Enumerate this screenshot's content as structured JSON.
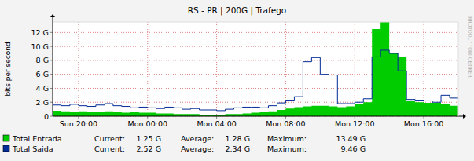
{
  "chart_data": {
    "type": "line",
    "title": "RS - PR | 200G | Trafego",
    "y_label": "bits per second",
    "watermark": "RRDTOOL / TOBI OETIKER",
    "x": [
      18.5,
      19,
      19.5,
      20,
      20.5,
      21,
      21.5,
      22,
      22.5,
      23,
      23.5,
      24,
      24.5,
      25,
      25.5,
      26,
      26.5,
      27,
      27.5,
      28,
      28.5,
      29,
      29.5,
      30,
      30.5,
      31,
      31.5,
      32,
      32.5,
      33,
      33.5,
      34,
      34.5,
      35,
      35.5,
      36,
      36.5,
      37,
      37.5,
      38,
      38.5,
      39,
      39.5,
      40,
      40.5,
      41,
      41.5,
      42
    ],
    "xlim": [
      18.5,
      42
    ],
    "xticks": [
      {
        "value": 20,
        "label": "Sun 20:00"
      },
      {
        "value": 24,
        "label": "Mon 00:00"
      },
      {
        "value": 28,
        "label": "Mon 04:00"
      },
      {
        "value": 32,
        "label": "Mon 08:00"
      },
      {
        "value": 36,
        "label": "Mon 12:00"
      },
      {
        "value": 40,
        "label": "Mon 16:00"
      }
    ],
    "ylim": [
      0,
      13.5
    ],
    "yticks": [
      0,
      {
        "value": 2,
        "label": "2 G"
      },
      {
        "value": 4,
        "label": "4 G"
      },
      {
        "value": 6,
        "label": "6 G"
      },
      {
        "value": 8,
        "label": "8 G"
      },
      {
        "value": 10,
        "label": "10 G"
      },
      {
        "value": 12,
        "label": "12 G"
      }
    ],
    "grid": true,
    "stat_labels": [
      "Current:",
      "Average:",
      "Maximum:"
    ],
    "series": [
      {
        "name": "Total Entrada",
        "color": "#00cc00",
        "type": "area",
        "current": "1.25 G",
        "average": "1.28 G",
        "maximum": "13.49 G",
        "values": [
          0.8,
          0.7,
          0.6,
          0.7,
          0.6,
          0.6,
          0.7,
          0.6,
          0.5,
          0.6,
          0.5,
          0.5,
          0.4,
          0.4,
          0.3,
          0.3,
          0.3,
          0.2,
          0.2,
          0.2,
          0.3,
          0.3,
          0.4,
          0.5,
          0.6,
          0.7,
          0.9,
          1.1,
          1.3,
          1.4,
          1.5,
          1.5,
          1.4,
          1.3,
          1.4,
          1.8,
          2.0,
          12.5,
          13.49,
          9.0,
          8.5,
          2.2,
          2.0,
          1.9,
          1.9,
          1.8,
          1.5,
          1.25
        ]
      },
      {
        "name": "Total Saida",
        "color": "#002a97",
        "type": "line",
        "current": "2.52 G",
        "average": "2.34 G",
        "maximum": "9.46 G",
        "values": [
          1.6,
          1.5,
          1.7,
          1.5,
          1.4,
          1.6,
          1.8,
          1.5,
          1.4,
          1.2,
          1.3,
          1.2,
          1.1,
          1.3,
          1.2,
          1.0,
          1.1,
          0.9,
          0.9,
          0.8,
          1.0,
          1.2,
          1.3,
          1.3,
          1.2,
          1.5,
          1.9,
          2.3,
          2.8,
          7.8,
          8.4,
          6.0,
          5.9,
          1.8,
          1.8,
          2.0,
          2.5,
          8.5,
          9.46,
          9.0,
          6.5,
          2.4,
          2.3,
          2.2,
          2.0,
          3.0,
          2.6,
          2.52
        ]
      }
    ]
  }
}
